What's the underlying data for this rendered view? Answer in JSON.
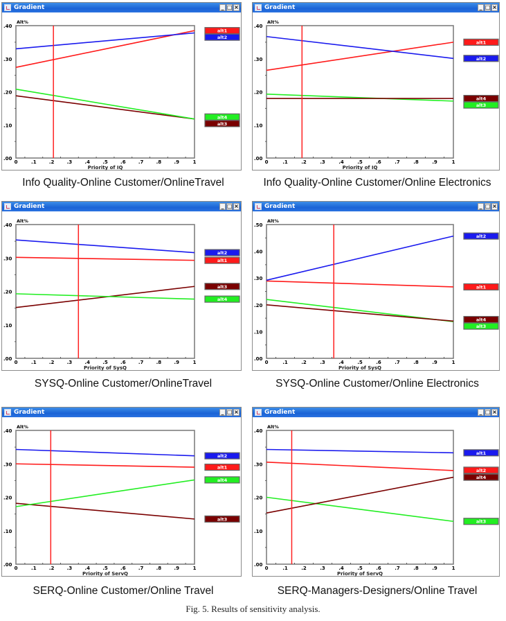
{
  "figure_caption": "Fig. 5. Results of sensitivity analysis.",
  "window": {
    "title": "Gradient",
    "minimize_label": "_",
    "maximize_label": "□",
    "close_label": "×",
    "colors": {
      "titlebar": "#1a63d6",
      "alt_red": "#ff1a1a",
      "alt_blue": "#1a1aee",
      "alt_green": "#22ee22",
      "alt_darkred": "#7a0000",
      "cursor_line": "#ff2020"
    }
  },
  "panels": [
    {
      "caption": "Info Quality-Online Customer/OnlineTravel"
    },
    {
      "caption": "Info Quality-Online Customer/Online Electronics"
    },
    {
      "caption": "SYSQ-Online Customer/OnlineTravel"
    },
    {
      "caption": "SYSQ-Online Customer/Online Electronics"
    },
    {
      "caption": "SERQ-Online Customer/Online Travel"
    },
    {
      "caption": "SERQ-Managers-Designers/Online Travel"
    }
  ],
  "chart_data": [
    {
      "type": "line",
      "title": "Gradient",
      "caption": "Info Quality-Online Customer/OnlineTravel",
      "xlabel": "Priority of IQ",
      "ylabel": "Alt%",
      "xlim": [
        0,
        1
      ],
      "ylim": [
        0,
        0.4
      ],
      "xticks": [
        "0",
        ".1",
        ".2",
        ".3",
        ".4",
        ".5",
        ".6",
        ".7",
        ".8",
        ".9",
        "1"
      ],
      "yticks": [
        ".00",
        ".10",
        ".20",
        ".30",
        ".40"
      ],
      "current_priority": 0.21,
      "series": [
        {
          "name": "alt1",
          "color": "#ff1a1a",
          "x": [
            0,
            1
          ],
          "y": [
            0.274,
            0.385
          ]
        },
        {
          "name": "alt2",
          "color": "#1a1aee",
          "x": [
            0,
            1
          ],
          "y": [
            0.33,
            0.378
          ]
        },
        {
          "name": "alt3",
          "color": "#7a0000",
          "x": [
            0,
            1
          ],
          "y": [
            0.188,
            0.118
          ]
        },
        {
          "name": "alt4",
          "color": "#22ee22",
          "x": [
            0,
            1
          ],
          "y": [
            0.208,
            0.118
          ]
        }
      ],
      "legend": [
        {
          "label": "alt1",
          "color": "#ff1a1a",
          "at": 0.385
        },
        {
          "label": "alt2",
          "color": "#1a1aee",
          "at": 0.378
        },
        {
          "label": "alt4",
          "color": "#22ee22",
          "at": 0.124
        },
        {
          "label": "alt3",
          "color": "#7a0000",
          "at": 0.112
        }
      ]
    },
    {
      "type": "line",
      "title": "Gradient",
      "caption": "Info Quality-Online Customer/Online Electronics",
      "xlabel": "Priority of IQ",
      "ylabel": "Alt%",
      "xlim": [
        0,
        1
      ],
      "ylim": [
        0,
        0.4
      ],
      "xticks": [
        "0",
        ".1",
        ".2",
        ".3",
        ".4",
        ".5",
        ".6",
        ".7",
        ".8",
        ".9",
        "1"
      ],
      "yticks": [
        ".00",
        ".10",
        ".20",
        ".30",
        ".40"
      ],
      "current_priority": 0.19,
      "series": [
        {
          "name": "alt1",
          "color": "#ff1a1a",
          "x": [
            0,
            1
          ],
          "y": [
            0.265,
            0.35
          ]
        },
        {
          "name": "alt2",
          "color": "#1a1aee",
          "x": [
            0,
            1
          ],
          "y": [
            0.367,
            0.301
          ]
        },
        {
          "name": "alt3",
          "color": "#22ee22",
          "x": [
            0,
            1
          ],
          "y": [
            0.193,
            0.172
          ]
        },
        {
          "name": "alt4",
          "color": "#7a0000",
          "x": [
            0,
            1
          ],
          "y": [
            0.18,
            0.18
          ]
        }
      ],
      "legend": [
        {
          "label": "alt1",
          "color": "#ff1a1a",
          "at": 0.35
        },
        {
          "label": "alt2",
          "color": "#1a1aee",
          "at": 0.301
        },
        {
          "label": "alt4",
          "color": "#7a0000",
          "at": 0.18
        },
        {
          "label": "alt3",
          "color": "#22ee22",
          "at": 0.172
        }
      ]
    },
    {
      "type": "line",
      "title": "Gradient",
      "caption": "SYSQ-Online Customer/OnlineTravel",
      "xlabel": "Priority of SysQ",
      "ylabel": "Alt%",
      "xlim": [
        0,
        1
      ],
      "ylim": [
        0,
        0.4
      ],
      "xticks": [
        "0",
        ".1",
        ".2",
        ".3",
        ".4",
        ".5",
        ".6",
        ".7",
        ".8",
        ".9",
        "1"
      ],
      "yticks": [
        ".00",
        ".10",
        ".20",
        ".30",
        ".40"
      ],
      "current_priority": 0.35,
      "series": [
        {
          "name": "alt1",
          "color": "#ff1a1a",
          "x": [
            0,
            1
          ],
          "y": [
            0.302,
            0.293
          ]
        },
        {
          "name": "alt2",
          "color": "#1a1aee",
          "x": [
            0,
            1
          ],
          "y": [
            0.354,
            0.316
          ]
        },
        {
          "name": "alt3",
          "color": "#7a0000",
          "x": [
            0,
            1
          ],
          "y": [
            0.152,
            0.215
          ]
        },
        {
          "name": "alt4",
          "color": "#22ee22",
          "x": [
            0,
            1
          ],
          "y": [
            0.193,
            0.177
          ]
        }
      ],
      "legend": [
        {
          "label": "alt2",
          "color": "#1a1aee",
          "at": 0.316
        },
        {
          "label": "alt1",
          "color": "#ff1a1a",
          "at": 0.293
        },
        {
          "label": "alt3",
          "color": "#7a0000",
          "at": 0.215
        },
        {
          "label": "alt4",
          "color": "#22ee22",
          "at": 0.177
        }
      ]
    },
    {
      "type": "line",
      "title": "Gradient",
      "caption": "SYSQ-Online Customer/Online Electronics",
      "xlabel": "Priority of SysQ",
      "ylabel": "Alt%",
      "xlim": [
        0,
        1
      ],
      "ylim": [
        0,
        0.5
      ],
      "xticks": [
        "0",
        ".1",
        ".2",
        ".3",
        ".4",
        ".5",
        ".6",
        ".7",
        ".8",
        ".9",
        "1"
      ],
      "yticks": [
        ".00",
        ".10",
        ".20",
        ".30",
        ".40",
        ".50"
      ],
      "current_priority": 0.36,
      "series": [
        {
          "name": "alt1",
          "color": "#ff1a1a",
          "x": [
            0,
            1
          ],
          "y": [
            0.289,
            0.267
          ]
        },
        {
          "name": "alt2",
          "color": "#1a1aee",
          "x": [
            0,
            1
          ],
          "y": [
            0.292,
            0.457
          ]
        },
        {
          "name": "alt3",
          "color": "#22ee22",
          "x": [
            0,
            1
          ],
          "y": [
            0.22,
            0.137
          ]
        },
        {
          "name": "alt4",
          "color": "#7a0000",
          "x": [
            0,
            1
          ],
          "y": [
            0.2,
            0.139
          ]
        }
      ],
      "legend": [
        {
          "label": "alt2",
          "color": "#1a1aee",
          "at": 0.457
        },
        {
          "label": "alt1",
          "color": "#ff1a1a",
          "at": 0.267
        },
        {
          "label": "alt4",
          "color": "#7a0000",
          "at": 0.145
        },
        {
          "label": "alt3",
          "color": "#22ee22",
          "at": 0.133
        }
      ]
    },
    {
      "type": "line",
      "title": "Gradient",
      "caption": "SERQ-Online Customer/Online Travel",
      "xlabel": "Priority of ServQ",
      "ylabel": "Alt%",
      "xlim": [
        0,
        1
      ],
      "ylim": [
        0,
        0.4
      ],
      "xticks": [
        "0",
        ".1",
        ".2",
        ".3",
        ".4",
        ".5",
        ".6",
        ".7",
        ".8",
        ".9",
        "1"
      ],
      "yticks": [
        ".00",
        ".10",
        ".20",
        ".30",
        ".40"
      ],
      "current_priority": 0.195,
      "series": [
        {
          "name": "alt1",
          "color": "#ff1a1a",
          "x": [
            0,
            1
          ],
          "y": [
            0.3,
            0.29
          ]
        },
        {
          "name": "alt2",
          "color": "#1a1aee",
          "x": [
            0,
            1
          ],
          "y": [
            0.343,
            0.324
          ]
        },
        {
          "name": "alt3",
          "color": "#7a0000",
          "x": [
            0,
            1
          ],
          "y": [
            0.182,
            0.135
          ]
        },
        {
          "name": "alt4",
          "color": "#22ee22",
          "x": [
            0,
            1
          ],
          "y": [
            0.172,
            0.252
          ]
        }
      ],
      "legend": [
        {
          "label": "alt2",
          "color": "#1a1aee",
          "at": 0.324
        },
        {
          "label": "alt1",
          "color": "#ff1a1a",
          "at": 0.29
        },
        {
          "label": "alt4",
          "color": "#22ee22",
          "at": 0.252
        },
        {
          "label": "alt3",
          "color": "#7a0000",
          "at": 0.135
        }
      ]
    },
    {
      "type": "line",
      "title": "Gradient",
      "caption": "SERQ-Managers-Designers/Online Travel",
      "xlabel": "Priority of ServQ",
      "ylabel": "Alt%",
      "xlim": [
        0,
        1
      ],
      "ylim": [
        0,
        0.4
      ],
      "xticks": [
        "0",
        ".1",
        ".2",
        ".3",
        ".4",
        ".5",
        ".6",
        ".7",
        ".8",
        ".9",
        "1"
      ],
      "yticks": [
        ".00",
        ".10",
        ".20",
        ".30",
        ".40"
      ],
      "current_priority": 0.135,
      "series": [
        {
          "name": "alt1",
          "color": "#1a1aee",
          "x": [
            0,
            1
          ],
          "y": [
            0.343,
            0.333
          ]
        },
        {
          "name": "alt2",
          "color": "#ff1a1a",
          "x": [
            0,
            1
          ],
          "y": [
            0.305,
            0.28
          ]
        },
        {
          "name": "alt3",
          "color": "#22ee22",
          "x": [
            0,
            1
          ],
          "y": [
            0.2,
            0.128
          ]
        },
        {
          "name": "alt4",
          "color": "#7a0000",
          "x": [
            0,
            1
          ],
          "y": [
            0.153,
            0.26
          ]
        }
      ],
      "legend": [
        {
          "label": "alt1",
          "color": "#1a1aee",
          "at": 0.333
        },
        {
          "label": "alt2",
          "color": "#ff1a1a",
          "at": 0.281
        },
        {
          "label": "alt4",
          "color": "#7a0000",
          "at": 0.26
        },
        {
          "label": "alt3",
          "color": "#22ee22",
          "at": 0.128
        }
      ]
    }
  ]
}
